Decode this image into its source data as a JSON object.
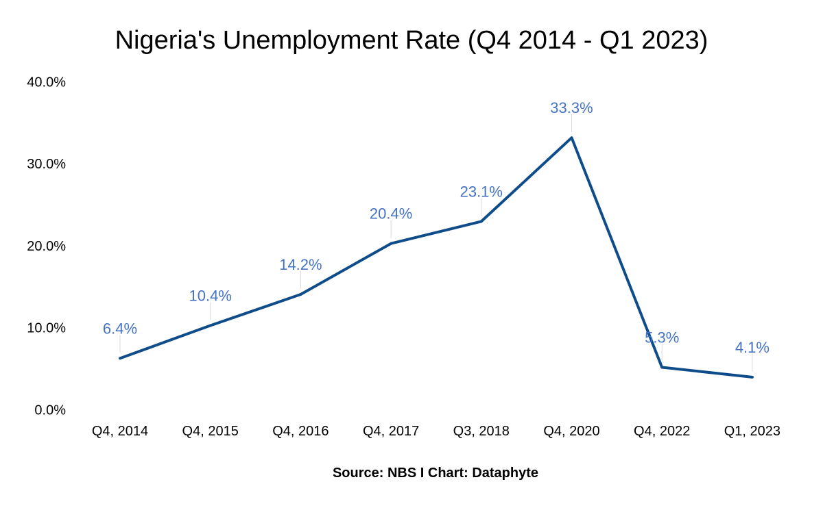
{
  "chart_data": {
    "type": "line",
    "title": "Nigeria's Unemployment Rate (Q4 2014 - Q1 2023)",
    "source": "Source: NBS I Chart: Dataphyte",
    "xlabel": "",
    "ylabel": "",
    "categories": [
      "Q4, 2014",
      "Q4, 2015",
      "Q4, 2016",
      "Q4, 2017",
      "Q3, 2018",
      "Q4, 2020",
      "Q4, 2022",
      "Q1, 2023"
    ],
    "series": [
      {
        "values": [
          6.4,
          10.4,
          14.2,
          20.4,
          23.1,
          33.3,
          5.3,
          4.1
        ],
        "labels": [
          "6.4%",
          "10.4%",
          "14.2%",
          "20.4%",
          "23.1%",
          "33.3%",
          "5.3%",
          "4.1%"
        ]
      }
    ],
    "ylim": [
      0,
      40
    ],
    "yticks": [
      0,
      10,
      20,
      30,
      40
    ],
    "ytick_labels": [
      "0.0%",
      "10.0%",
      "20.0%",
      "30.0%",
      "40.0%"
    ],
    "grid": false,
    "legend": "none",
    "colors": {
      "line": "#0f4c8a",
      "data_label": "#4472c4",
      "leader": "#d9d9d9"
    }
  }
}
